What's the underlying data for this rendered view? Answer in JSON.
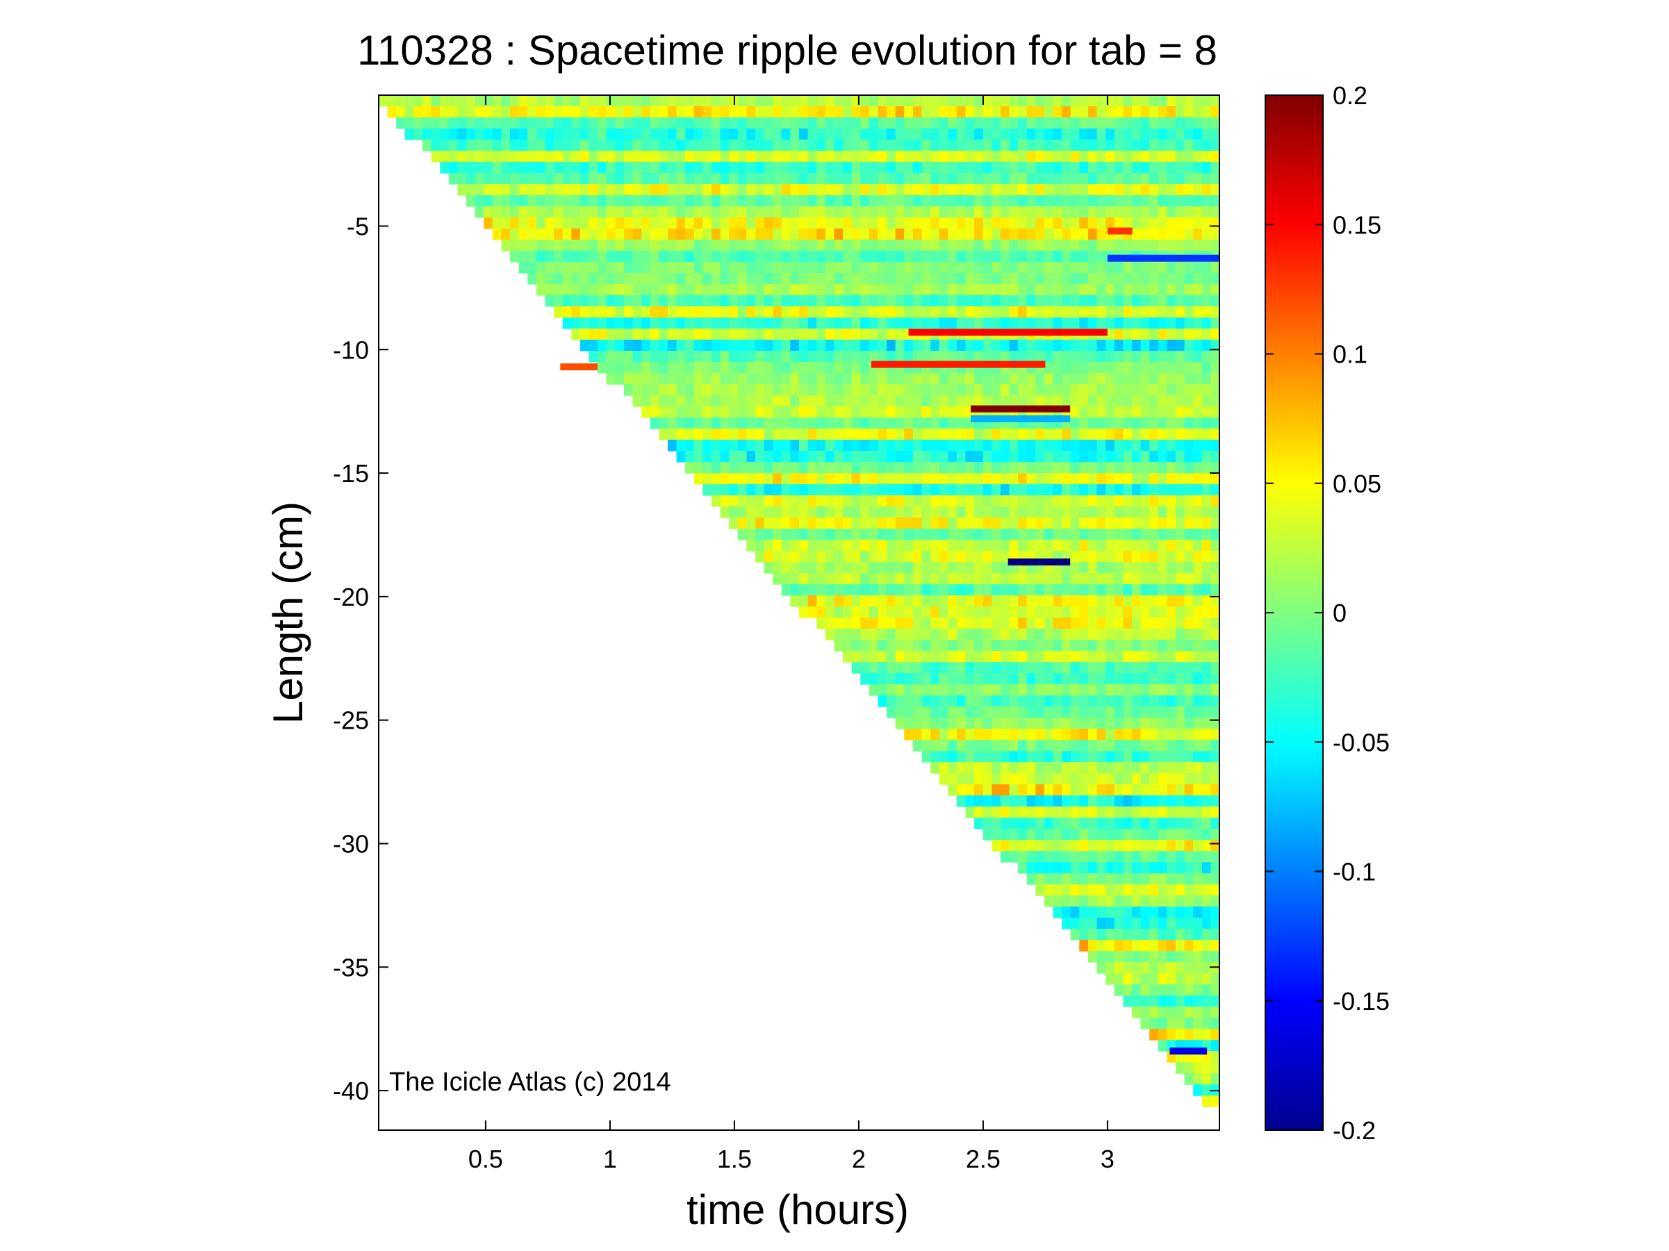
{
  "chart_data": {
    "type": "heatmap",
    "title": "110328 : Spacetime ripple evolution for tab = 8",
    "xlabel": "time (hours)",
    "ylabel": "Length (cm)",
    "xlim": [
      0.07,
      3.45
    ],
    "ylim": [
      -41.6,
      0.3
    ],
    "xticks": [
      0.5,
      1,
      1.5,
      2,
      2.5,
      3
    ],
    "xtick_labels": [
      "0.5",
      "1",
      "1.5",
      "2",
      "2.5",
      "3"
    ],
    "yticks": [
      -5,
      -10,
      -15,
      -20,
      -25,
      -30,
      -35,
      -40
    ],
    "ytick_labels": [
      "-5",
      "-10",
      "-15",
      "-20",
      "-25",
      "-30",
      "-35",
      "-40"
    ],
    "colormap": "jet",
    "clim": [
      -0.2,
      0.2
    ],
    "colorbar_ticks": [
      0.2,
      0.15,
      0.1,
      0.05,
      0,
      -0.05,
      -0.1,
      -0.15,
      -0.2
    ],
    "colorbar_tick_labels": [
      "0.2",
      "0.15",
      "0.1",
      "0.05",
      "0",
      "-0.05",
      "-0.1",
      "-0.15",
      "-0.2"
    ],
    "annotation": "The Icicle Atlas (c) 2014",
    "data_region": "upper-right triangle; icicle tip grows from 0 cm near t = 0.07 h to about -41.3 cm at t = 3.45 h",
    "growth_front": [
      [
        0.07,
        0.0
      ],
      [
        3.45,
        -41.3
      ]
    ],
    "notable_features": [
      {
        "t_start": 2.2,
        "t_end": 3.0,
        "length": -9.3,
        "value": 0.15
      },
      {
        "t_start": 2.05,
        "t_end": 2.75,
        "length": -10.6,
        "value": 0.14
      },
      {
        "t_start": 2.45,
        "t_end": 2.85,
        "length": -12.4,
        "value": 0.2
      },
      {
        "t_start": 2.45,
        "t_end": 2.85,
        "length": -12.8,
        "value": -0.08
      },
      {
        "t_start": 2.6,
        "t_end": 2.85,
        "length": -18.6,
        "value": -0.2
      },
      {
        "t_start": 3.0,
        "t_end": 3.45,
        "length": -6.3,
        "value": -0.13
      },
      {
        "t_start": 3.0,
        "t_end": 3.1,
        "length": -5.2,
        "value": 0.13
      },
      {
        "t_start": 0.8,
        "t_end": 0.95,
        "length": -10.7,
        "value": 0.12
      },
      {
        "t_start": 3.25,
        "t_end": 3.4,
        "length": -38.4,
        "value": -0.16
      }
    ]
  }
}
